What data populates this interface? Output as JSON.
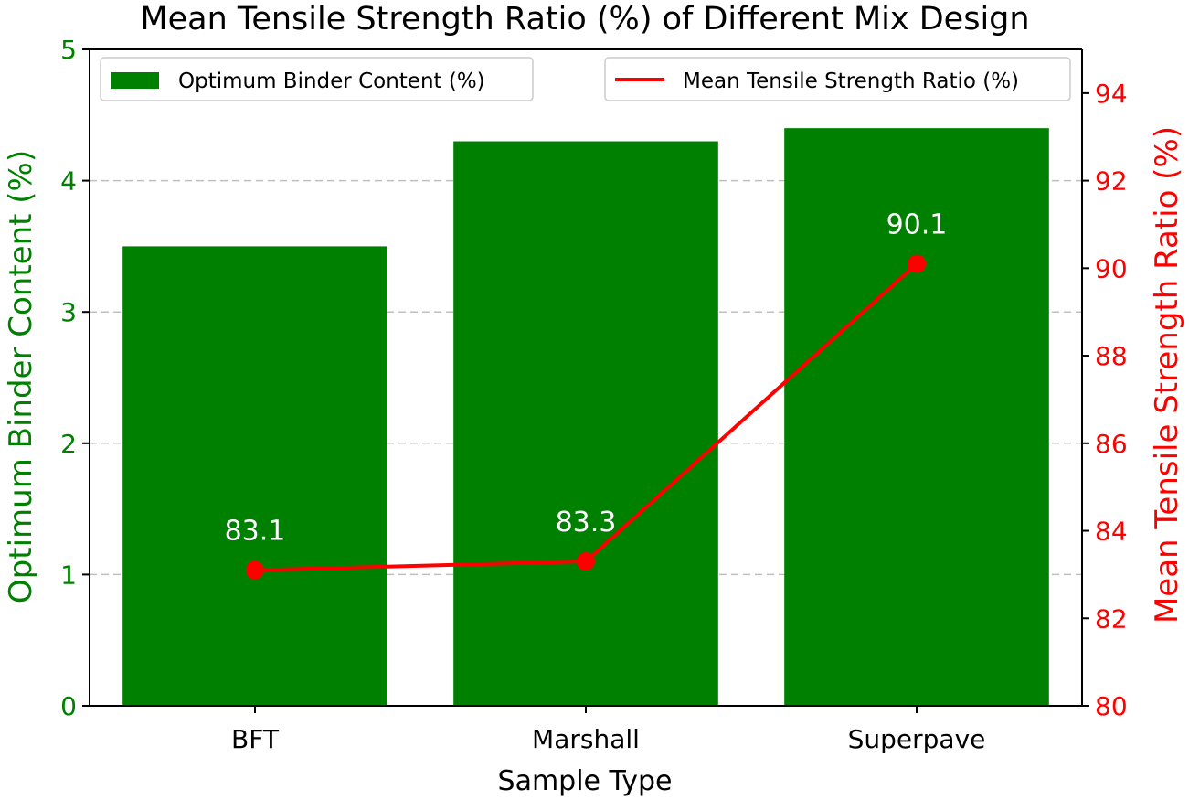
{
  "chart_data": {
    "type": "bar",
    "title": "Mean Tensile Strength Ratio (%) of Different Mix Design",
    "xlabel": "Sample Type",
    "categories": [
      "BFT",
      "Marshall",
      "Superpave"
    ],
    "left_axis": {
      "label": "Optimum Binder Content (%)",
      "ylim": [
        0,
        5
      ],
      "ticks": [
        "0",
        "1",
        "2",
        "3",
        "4",
        "5"
      ],
      "color": "#008000"
    },
    "right_axis": {
      "label": "Mean Tensile Strength Ratio (%)",
      "ylim": [
        80,
        95
      ],
      "ticks": [
        "80",
        "82",
        "84",
        "86",
        "88",
        "90",
        "92",
        "94"
      ],
      "color": "#ff0000"
    },
    "series": [
      {
        "name": "Optimum Binder Content (%)",
        "type": "bar",
        "axis": "left",
        "values": [
          3.5,
          4.3,
          4.4
        ],
        "color": "#008000"
      },
      {
        "name": "Mean Tensile Strength Ratio (%)",
        "type": "line",
        "axis": "right",
        "values": [
          83.1,
          83.3,
          90.1
        ],
        "labels": [
          "83.1",
          "83.3",
          "90.1"
        ],
        "color": "#ff0000"
      }
    ],
    "grid": "horizontal dashed",
    "legends": [
      "upper-left",
      "upper-right"
    ]
  }
}
